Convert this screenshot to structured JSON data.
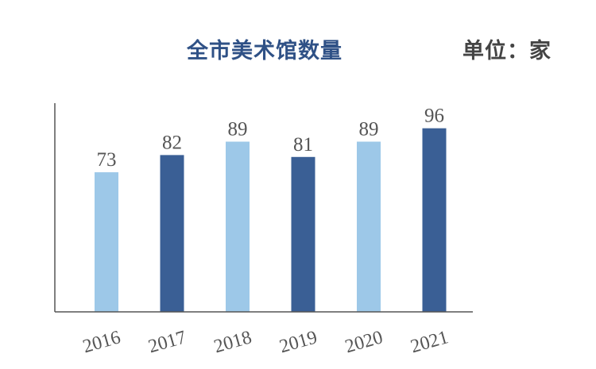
{
  "chart_data": {
    "type": "bar",
    "title": "全市美术馆数量",
    "unit_label": "单位：家",
    "categories": [
      "2016",
      "2017",
      "2018",
      "2019",
      "2020",
      "2021"
    ],
    "values": [
      73,
      82,
      89,
      81,
      89,
      96
    ],
    "bar_colors": [
      "#9dc8e8",
      "#3a5f95",
      "#9dc8e8",
      "#3a5f95",
      "#9dc8e8",
      "#3a5f95"
    ],
    "axis_color": "#555555",
    "value_label_color": "#555555",
    "tick_label_color": "#555555",
    "ylim": [
      0,
      100
    ],
    "grid": false,
    "legend": "none"
  }
}
